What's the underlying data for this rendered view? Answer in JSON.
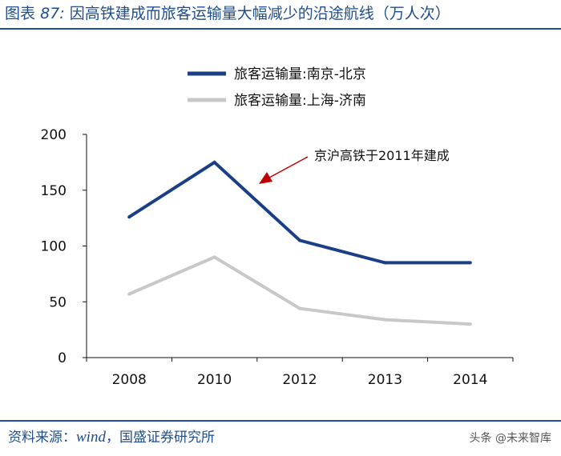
{
  "header": {
    "label": "图表",
    "number": "87:",
    "title": "因高铁建成而旅客运输量大幅减少的沿途航线（万人次）"
  },
  "footer": {
    "source_prefix": "资料来源：",
    "source_name": "wind",
    "source_rest": "，国盛证券研究所",
    "watermark": "头条 @未来智库"
  },
  "colors": {
    "accent": "#1f4e8c",
    "series_1": "#1a3f87",
    "series_2": "#c8c8c8"
  },
  "chart_data": {
    "type": "line",
    "categories": [
      "2008",
      "2010",
      "2012",
      "2013",
      "2014"
    ],
    "ylim": [
      0,
      200
    ],
    "yticks": [
      "200",
      "150",
      "100",
      "50",
      "0"
    ],
    "legend_position": "top-left",
    "grid": false,
    "series": [
      {
        "name": "旅客运输量:南京-北京",
        "values": [
          126,
          175,
          105,
          85,
          85
        ]
      },
      {
        "name": "旅客运输量:上海-济南",
        "values": [
          57,
          90,
          44,
          34,
          30
        ]
      }
    ],
    "annotation": "京沪高铁于2011年建成"
  }
}
